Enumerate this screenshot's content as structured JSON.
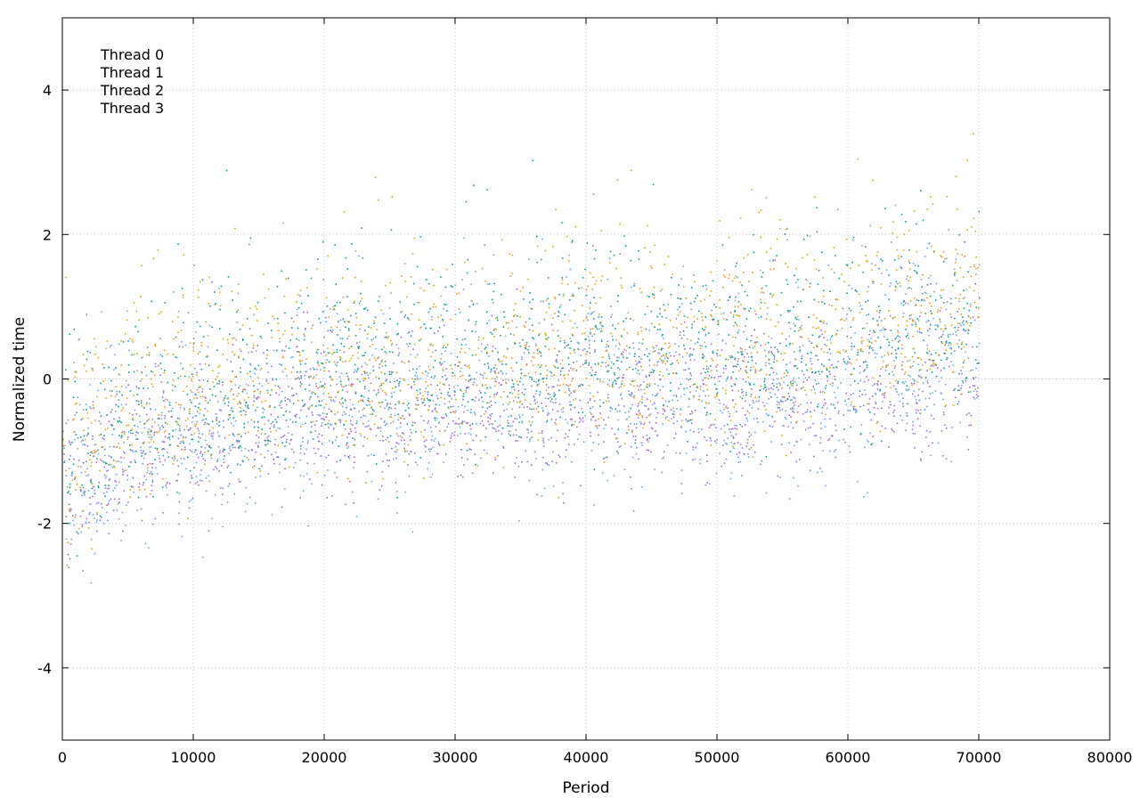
{
  "chart_data": {
    "type": "scatter",
    "title": "",
    "xlabel": "Period",
    "ylabel": "Normalized time",
    "xlim": [
      0,
      80000
    ],
    "ylim": [
      -5,
      5
    ],
    "xticks": [
      0,
      10000,
      20000,
      30000,
      40000,
      50000,
      60000,
      70000,
      80000
    ],
    "yticks": [
      -4,
      -2,
      0,
      2,
      4
    ],
    "grid": true,
    "legend_position": "top-left",
    "point_count_per_series": 1400,
    "series": [
      {
        "name": "Thread 0",
        "color": "#a070c8",
        "trend": [
          [
            0,
            -1.6
          ],
          [
            5000,
            -1.1
          ],
          [
            10000,
            -0.9
          ],
          [
            20000,
            -0.6
          ],
          [
            30000,
            -0.5
          ],
          [
            40000,
            -0.4
          ],
          [
            50000,
            -0.4
          ],
          [
            60000,
            -0.2
          ],
          [
            70000,
            0.0
          ]
        ],
        "spread": 0.45
      },
      {
        "name": "Thread 1",
        "color": "#1a9a8a",
        "trend": [
          [
            0,
            -1.2
          ],
          [
            5000,
            -0.7
          ],
          [
            10000,
            -0.3
          ],
          [
            20000,
            0.0
          ],
          [
            30000,
            0.2
          ],
          [
            40000,
            0.3
          ],
          [
            50000,
            0.3
          ],
          [
            60000,
            0.5
          ],
          [
            70000,
            0.8
          ]
        ],
        "spread": 0.55
      },
      {
        "name": "Thread 2",
        "color": "#6fa8e0",
        "trend": [
          [
            0,
            -1.5
          ],
          [
            5000,
            -1.0
          ],
          [
            10000,
            -0.7
          ],
          [
            20000,
            -0.4
          ],
          [
            30000,
            -0.3
          ],
          [
            40000,
            -0.2
          ],
          [
            50000,
            -0.2
          ],
          [
            60000,
            0.0
          ],
          [
            70000,
            0.3
          ]
        ],
        "spread": 0.6
      },
      {
        "name": "Thread 3",
        "color": "#d4a52a",
        "trend": [
          [
            0,
            -1.1
          ],
          [
            5000,
            -0.5
          ],
          [
            10000,
            -0.2
          ],
          [
            20000,
            0.1
          ],
          [
            30000,
            0.3
          ],
          [
            40000,
            0.4
          ],
          [
            50000,
            0.4
          ],
          [
            60000,
            0.6
          ],
          [
            70000,
            1.0
          ]
        ],
        "spread": 0.6
      }
    ]
  }
}
